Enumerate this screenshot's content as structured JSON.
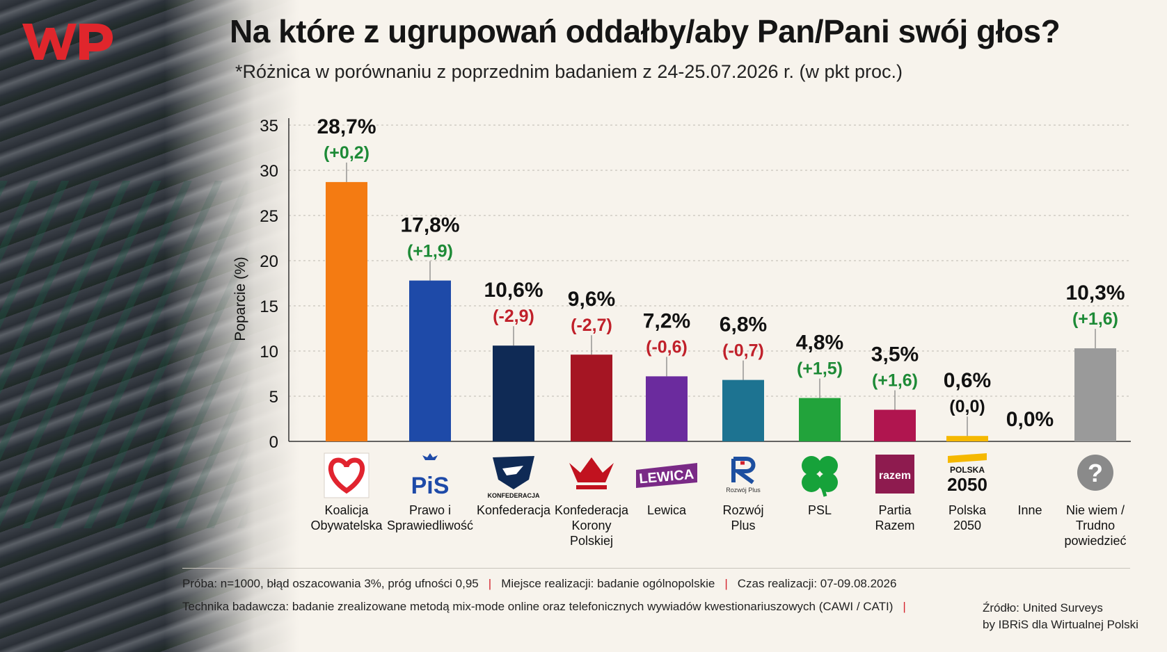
{
  "title": "Na które z ugrupowań oddałby/aby Pan/Pani swój głos?",
  "subtitle": "*Różnica w porównaniu z poprzednim badaniem z 24-25.07.2026 r. (w pkt proc.)",
  "colors": {
    "positive": "#1d8a36",
    "negative": "#c0202a",
    "neutral": "#111111",
    "brand": "#e0262c"
  },
  "chart_data": {
    "type": "bar",
    "ylabel": "Poparcie (%)",
    "ylim": [
      0,
      35
    ],
    "yticks": [
      "0",
      "5",
      "10",
      "15",
      "20",
      "25",
      "30",
      "35"
    ],
    "grid": true,
    "categories": [
      {
        "name_lines": [
          "Koalicja",
          "Obywatelska"
        ],
        "value": 28.7,
        "label": "28,7%",
        "diff": "(+0,2)",
        "diff_sign": "positive",
        "color": "#f47b12",
        "icon": "heart-logo-icon"
      },
      {
        "name_lines": [
          "Prawo i",
          "Sprawiedliwość"
        ],
        "value": 17.8,
        "label": "17,8%",
        "diff": "(+1,9)",
        "diff_sign": "positive",
        "color": "#1e4aa8",
        "icon": "pis-logo-icon",
        "logo_text": "PiS"
      },
      {
        "name_lines": [
          "Konfederacja"
        ],
        "value": 10.6,
        "label": "10,6%",
        "diff": "(-2,9)",
        "diff_sign": "negative",
        "color": "#0f2a55",
        "icon": "eagle-logo-icon",
        "logo_text": "KONFEDERACJA"
      },
      {
        "name_lines": [
          "Konfederacja",
          "Korony",
          "Polskiej"
        ],
        "value": 9.6,
        "label": "9,6%",
        "diff": "(-2,7)",
        "diff_sign": "negative",
        "color": "#a51523",
        "icon": "crown-logo-icon"
      },
      {
        "name_lines": [
          "Lewica"
        ],
        "value": 7.2,
        "label": "7,2%",
        "diff": "(-0,6)",
        "diff_sign": "negative",
        "color": "#6b2b9e",
        "icon": "lewica-logo-icon",
        "logo_text": "LEWICA"
      },
      {
        "name_lines": [
          "Rozwój",
          "Plus"
        ],
        "value": 6.8,
        "label": "6,8%",
        "diff": "(-0,7)",
        "diff_sign": "negative",
        "color": "#1d7391",
        "icon": "rozwoj-logo-icon",
        "logo_text": "Rozwój Plus"
      },
      {
        "name_lines": [
          "PSL"
        ],
        "value": 4.8,
        "label": "4,8%",
        "diff": "(+1,5)",
        "diff_sign": "positive",
        "color": "#22a33b",
        "icon": "clover-logo-icon"
      },
      {
        "name_lines": [
          "Partia",
          "Razem"
        ],
        "value": 3.5,
        "label": "3,5%",
        "diff": "(+1,6)",
        "diff_sign": "positive",
        "color": "#b0154f",
        "icon": "razem-logo-icon",
        "logo_text": "razem"
      },
      {
        "name_lines": [
          "Polska",
          "2050"
        ],
        "value": 0.6,
        "label": "0,6%",
        "diff": "(0,0)",
        "diff_sign": "neutral",
        "color": "#f5b800",
        "icon": "polska2050-logo-icon",
        "logo_text": [
          "POLSKA",
          "2050"
        ]
      },
      {
        "name_lines": [
          "Inne"
        ],
        "value": 0.0,
        "label": "0,0%",
        "diff": "",
        "diff_sign": "neutral",
        "color": "#999999",
        "icon": ""
      },
      {
        "name_lines": [
          "Nie wiem /",
          "Trudno",
          "powiedzieć"
        ],
        "value": 10.3,
        "label": "10,3%",
        "diff": "(+1,6)",
        "diff_sign": "positive",
        "color": "#9a9a9a",
        "icon": "question-mark-icon",
        "logo_text": "?"
      }
    ]
  },
  "footer": {
    "sample": "Próba: n=1000, błąd oszacowania 3%, próg ufności 0,95",
    "place": "Miejsce realizacji: badanie ogólnopolskie",
    "time": "Czas realizacji: 07-09.08.2026",
    "technique": "Technika badawcza: badanie zrealizowane metodą mix-mode online oraz telefonicznych wywiadów kwestionariuszowych (CAWI / CATI)",
    "source_line1": "Źródło: United Surveys",
    "source_line2": "by IBRiS dla Wirtualnej Polski",
    "separator": "|"
  }
}
